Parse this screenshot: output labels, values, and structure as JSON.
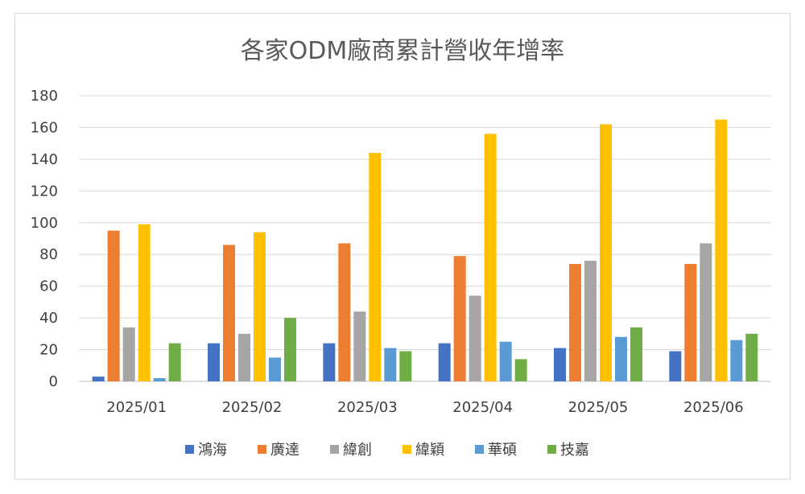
{
  "chart_data": {
    "type": "bar",
    "title": "各家ODM廠商累計營收年增率",
    "xlabel": "",
    "ylabel": "",
    "ylim": [
      0,
      180
    ],
    "yticks": [
      0,
      20,
      40,
      60,
      80,
      100,
      120,
      140,
      160,
      180
    ],
    "grid": true,
    "legend_position": "bottom",
    "categories": [
      "2025/01",
      "2025/02",
      "2025/03",
      "2025/04",
      "2025/05",
      "2025/06"
    ],
    "series": [
      {
        "name": "鴻海",
        "color": "#4472C4",
        "values": [
          3,
          24,
          24,
          24,
          21,
          19
        ]
      },
      {
        "name": "廣達",
        "color": "#ED7D31",
        "values": [
          95,
          86,
          87,
          79,
          74,
          74
        ]
      },
      {
        "name": "緯創",
        "color": "#A5A5A5",
        "values": [
          34,
          30,
          44,
          54,
          76,
          87
        ]
      },
      {
        "name": "緯穎",
        "color": "#FFC000",
        "values": [
          99,
          94,
          144,
          156,
          162,
          165
        ]
      },
      {
        "name": "華碩",
        "color": "#5B9BD5",
        "values": [
          2,
          15,
          21,
          25,
          28,
          26
        ]
      },
      {
        "name": "技嘉",
        "color": "#70AD47",
        "values": [
          24,
          40,
          19,
          14,
          34,
          30
        ]
      }
    ]
  }
}
